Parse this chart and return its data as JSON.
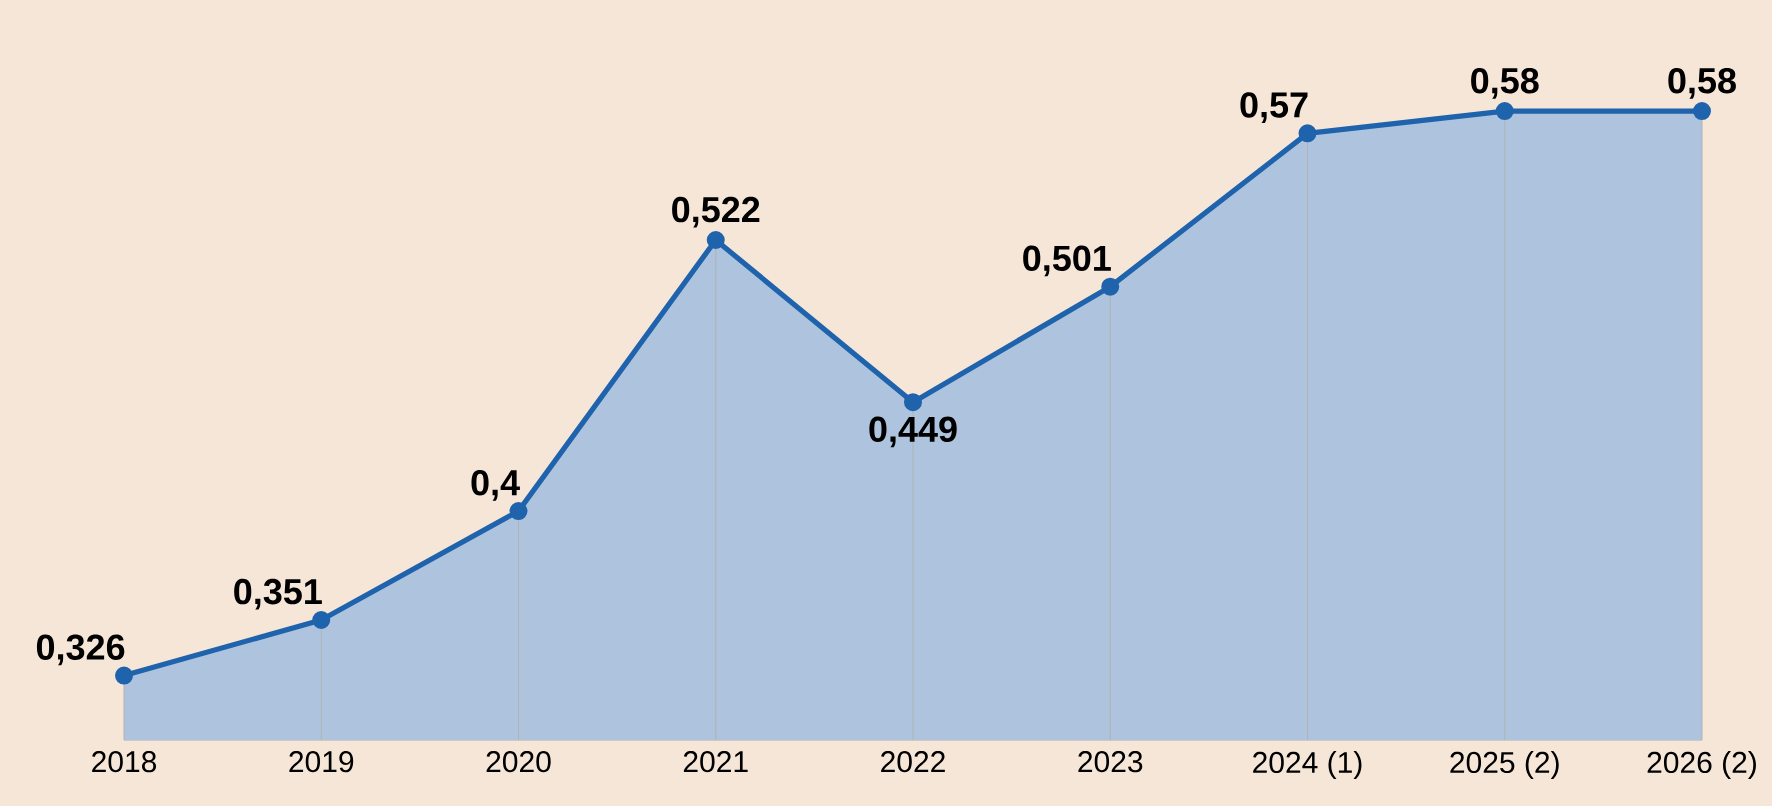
{
  "chart_data": {
    "type": "area",
    "categories": [
      "2018",
      "2019",
      "2020",
      "2021",
      "2022",
      "2023",
      "2024 (1)",
      "2025 (2)",
      "2026 (2)"
    ],
    "series": [
      {
        "color": "#1f63ad",
        "values": [
          0.326,
          0.351,
          0.4,
          0.522,
          0.449,
          0.501,
          0.57,
          0.58,
          0.58
        ],
        "value_labels": [
          "0,326",
          "0,351",
          "0,4",
          "0,522",
          "0,449",
          "0,501",
          "0,57",
          "0,58",
          "0,58"
        ]
      }
    ],
    "ylim": [
      0.297,
      0.63
    ],
    "grid": "x",
    "marker": "circle",
    "line_style": "solid"
  }
}
